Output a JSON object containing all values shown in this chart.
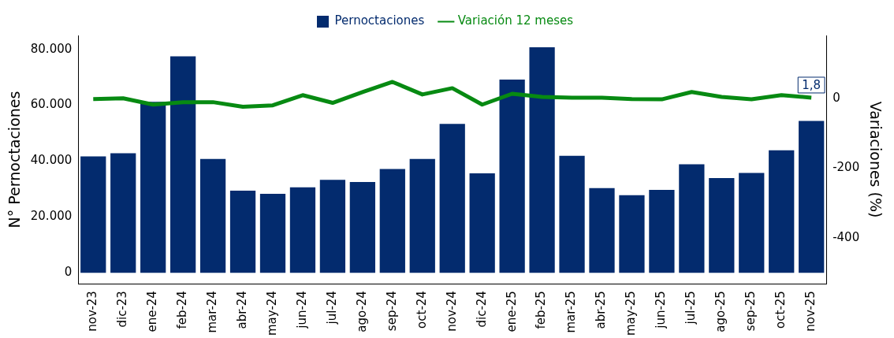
{
  "chart_data": {
    "type": "bar",
    "xlabel": null,
    "ylabel": "N° Pernoctaciones",
    "y2label": "Variaciones (%)",
    "categories": [
      "nov-23",
      "dic-23",
      "ene-24",
      "feb-24",
      "mar-24",
      "abr-24",
      "may-24",
      "jun-24",
      "jul-24",
      "ago-24",
      "sep-24",
      "oct-24",
      "nov-24",
      "dic-24",
      "ene-25",
      "feb-25",
      "mar-25",
      "abr-25",
      "may-25",
      "jun-25",
      "jul-25",
      "ago-25",
      "sep-25",
      "oct-25",
      "nov-25"
    ],
    "series": [
      {
        "name": "Pernoctaciones",
        "color": "#032b6e",
        "values": [
          41700,
          42800,
          61200,
          77500,
          40800,
          29400,
          28300,
          30600,
          33300,
          32500,
          37200,
          40800,
          53300,
          35600,
          69200,
          80800,
          41900,
          30300,
          27800,
          29700,
          38900,
          33900,
          35800,
          43900,
          54400
        ]
      },
      {
        "name": "Variación 12 meses",
        "type": "line",
        "axis": "y2",
        "color": "#078a12",
        "values": [
          -2,
          0,
          -18,
          -11,
          -11,
          -24,
          -20,
          9,
          -13,
          18,
          47,
          11,
          29,
          -18,
          13,
          4,
          2,
          2,
          -2,
          -3,
          18,
          4,
          -3,
          9,
          1.8
        ],
        "value_labels": [
          null,
          null,
          null,
          null,
          null,
          null,
          null,
          null,
          null,
          null,
          null,
          null,
          null,
          null,
          null,
          null,
          null,
          null,
          null,
          null,
          null,
          null,
          null,
          null,
          "1,8"
        ]
      }
    ],
    "ylim": [
      -3900,
      85000
    ],
    "yticks": [
      {
        "value": 0,
        "label": "0"
      },
      {
        "value": 20000,
        "label": "20.000"
      },
      {
        "value": 40000,
        "label": "40.000"
      },
      {
        "value": 60000,
        "label": "60.000"
      },
      {
        "value": 80000,
        "label": "80.000"
      }
    ],
    "y2lim": [
      -531,
      180
    ],
    "y2ticks": [
      0,
      -200,
      -400
    ],
    "grid": false,
    "legend": "top",
    "marker": "none",
    "line_style": "solid"
  }
}
